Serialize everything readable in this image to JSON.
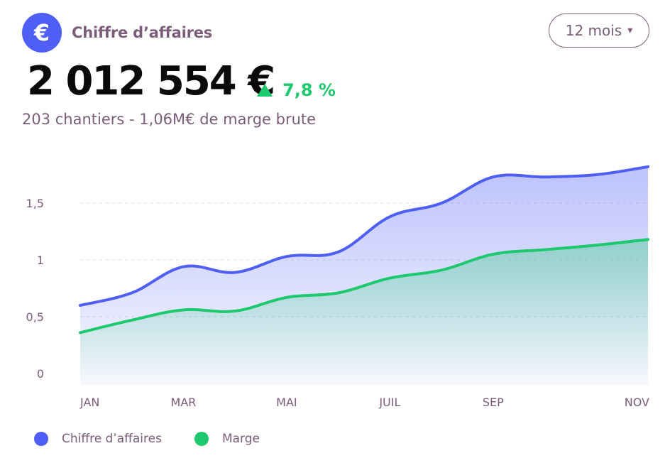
{
  "header": {
    "icon": "euro-icon",
    "icon_glyph": "€",
    "title": "Chiffre d’affaires"
  },
  "period_select": {
    "value": "12 mois",
    "caret": "▾"
  },
  "kpi": {
    "value": "2 012 554 €",
    "trend_icon": "triangle-up-icon",
    "trend": "7,8 %",
    "subtitle": "203 chantiers - 1,06M€ de marge brute"
  },
  "colors": {
    "revenue": "#4f5ff6",
    "margin": "#1ec86e",
    "text": "#7a5d78"
  },
  "chart_data": {
    "type": "area",
    "x": [
      1,
      2,
      3,
      4,
      5,
      6,
      7,
      8,
      9,
      10,
      11,
      12
    ],
    "tick_positions": [
      1,
      3,
      5,
      7,
      9,
      11
    ],
    "tick_labels": [
      "JAN",
      "MAR",
      "MAI",
      "JUIL",
      "SEP",
      "NOV"
    ],
    "y_ticks": [
      0,
      0.5,
      1,
      1.5
    ],
    "y_tick_labels": [
      "0",
      "0,5",
      "1",
      "1,5"
    ],
    "ylim": [
      -0.1,
      1.9
    ],
    "grid": true,
    "series": [
      {
        "name": "Chiffre d’affaires",
        "values": [
          0.6,
          0.71,
          0.94,
          0.89,
          1.03,
          1.07,
          1.38,
          1.5,
          1.73,
          1.73,
          1.75,
          1.82
        ]
      },
      {
        "name": "Marge",
        "values": [
          0.36,
          0.47,
          0.56,
          0.55,
          0.67,
          0.71,
          0.84,
          0.91,
          1.05,
          1.09,
          1.13,
          1.18
        ]
      }
    ]
  }
}
